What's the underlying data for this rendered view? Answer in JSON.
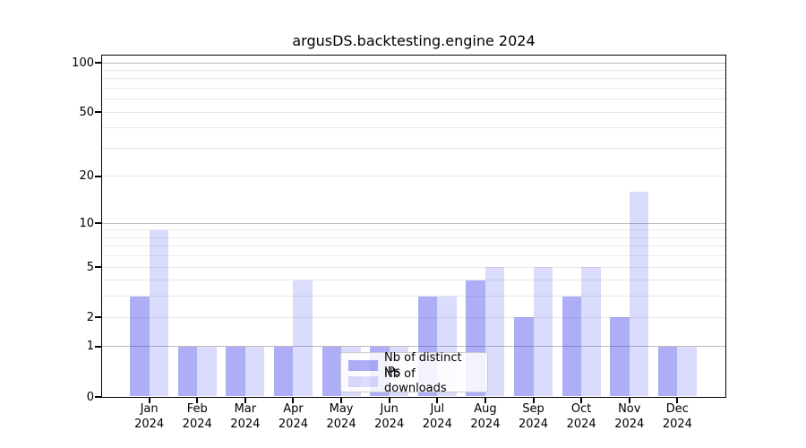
{
  "chart_data": {
    "type": "bar",
    "title": "argusDS.backtesting.engine 2024",
    "categories": [
      "Jan",
      "Feb",
      "Mar",
      "Apr",
      "May",
      "Jun",
      "Jul",
      "Aug",
      "Sep",
      "Oct",
      "Nov",
      "Dec"
    ],
    "category_year": "2024",
    "series": [
      {
        "name": "Nb of distinct IPs",
        "color": "rgba(30,30,230,0.36)",
        "values": [
          3,
          1,
          1,
          1,
          1,
          1,
          3,
          4,
          2,
          3,
          2,
          1
        ]
      },
      {
        "name": "Nb of downloads",
        "color": "rgba(30,30,230,0.16)",
        "values": [
          9,
          1,
          1,
          4,
          1,
          1,
          3,
          5,
          5,
          5,
          16,
          1
        ]
      }
    ],
    "yscale": "log1p",
    "ylim": [
      0,
      100
    ],
    "yticks": [
      0,
      1,
      2,
      5,
      10,
      20,
      50,
      100
    ],
    "grid": {
      "major": [
        1,
        10,
        100
      ],
      "minor": [
        2,
        3,
        4,
        5,
        6,
        7,
        8,
        9,
        20,
        30,
        40,
        50,
        60,
        70,
        80,
        90
      ]
    },
    "legend": {
      "position": "lower center"
    },
    "colors": {
      "major_grid": "#bdbdbd",
      "minor_grid": "#e9e9e9",
      "spine": "#000000"
    }
  }
}
